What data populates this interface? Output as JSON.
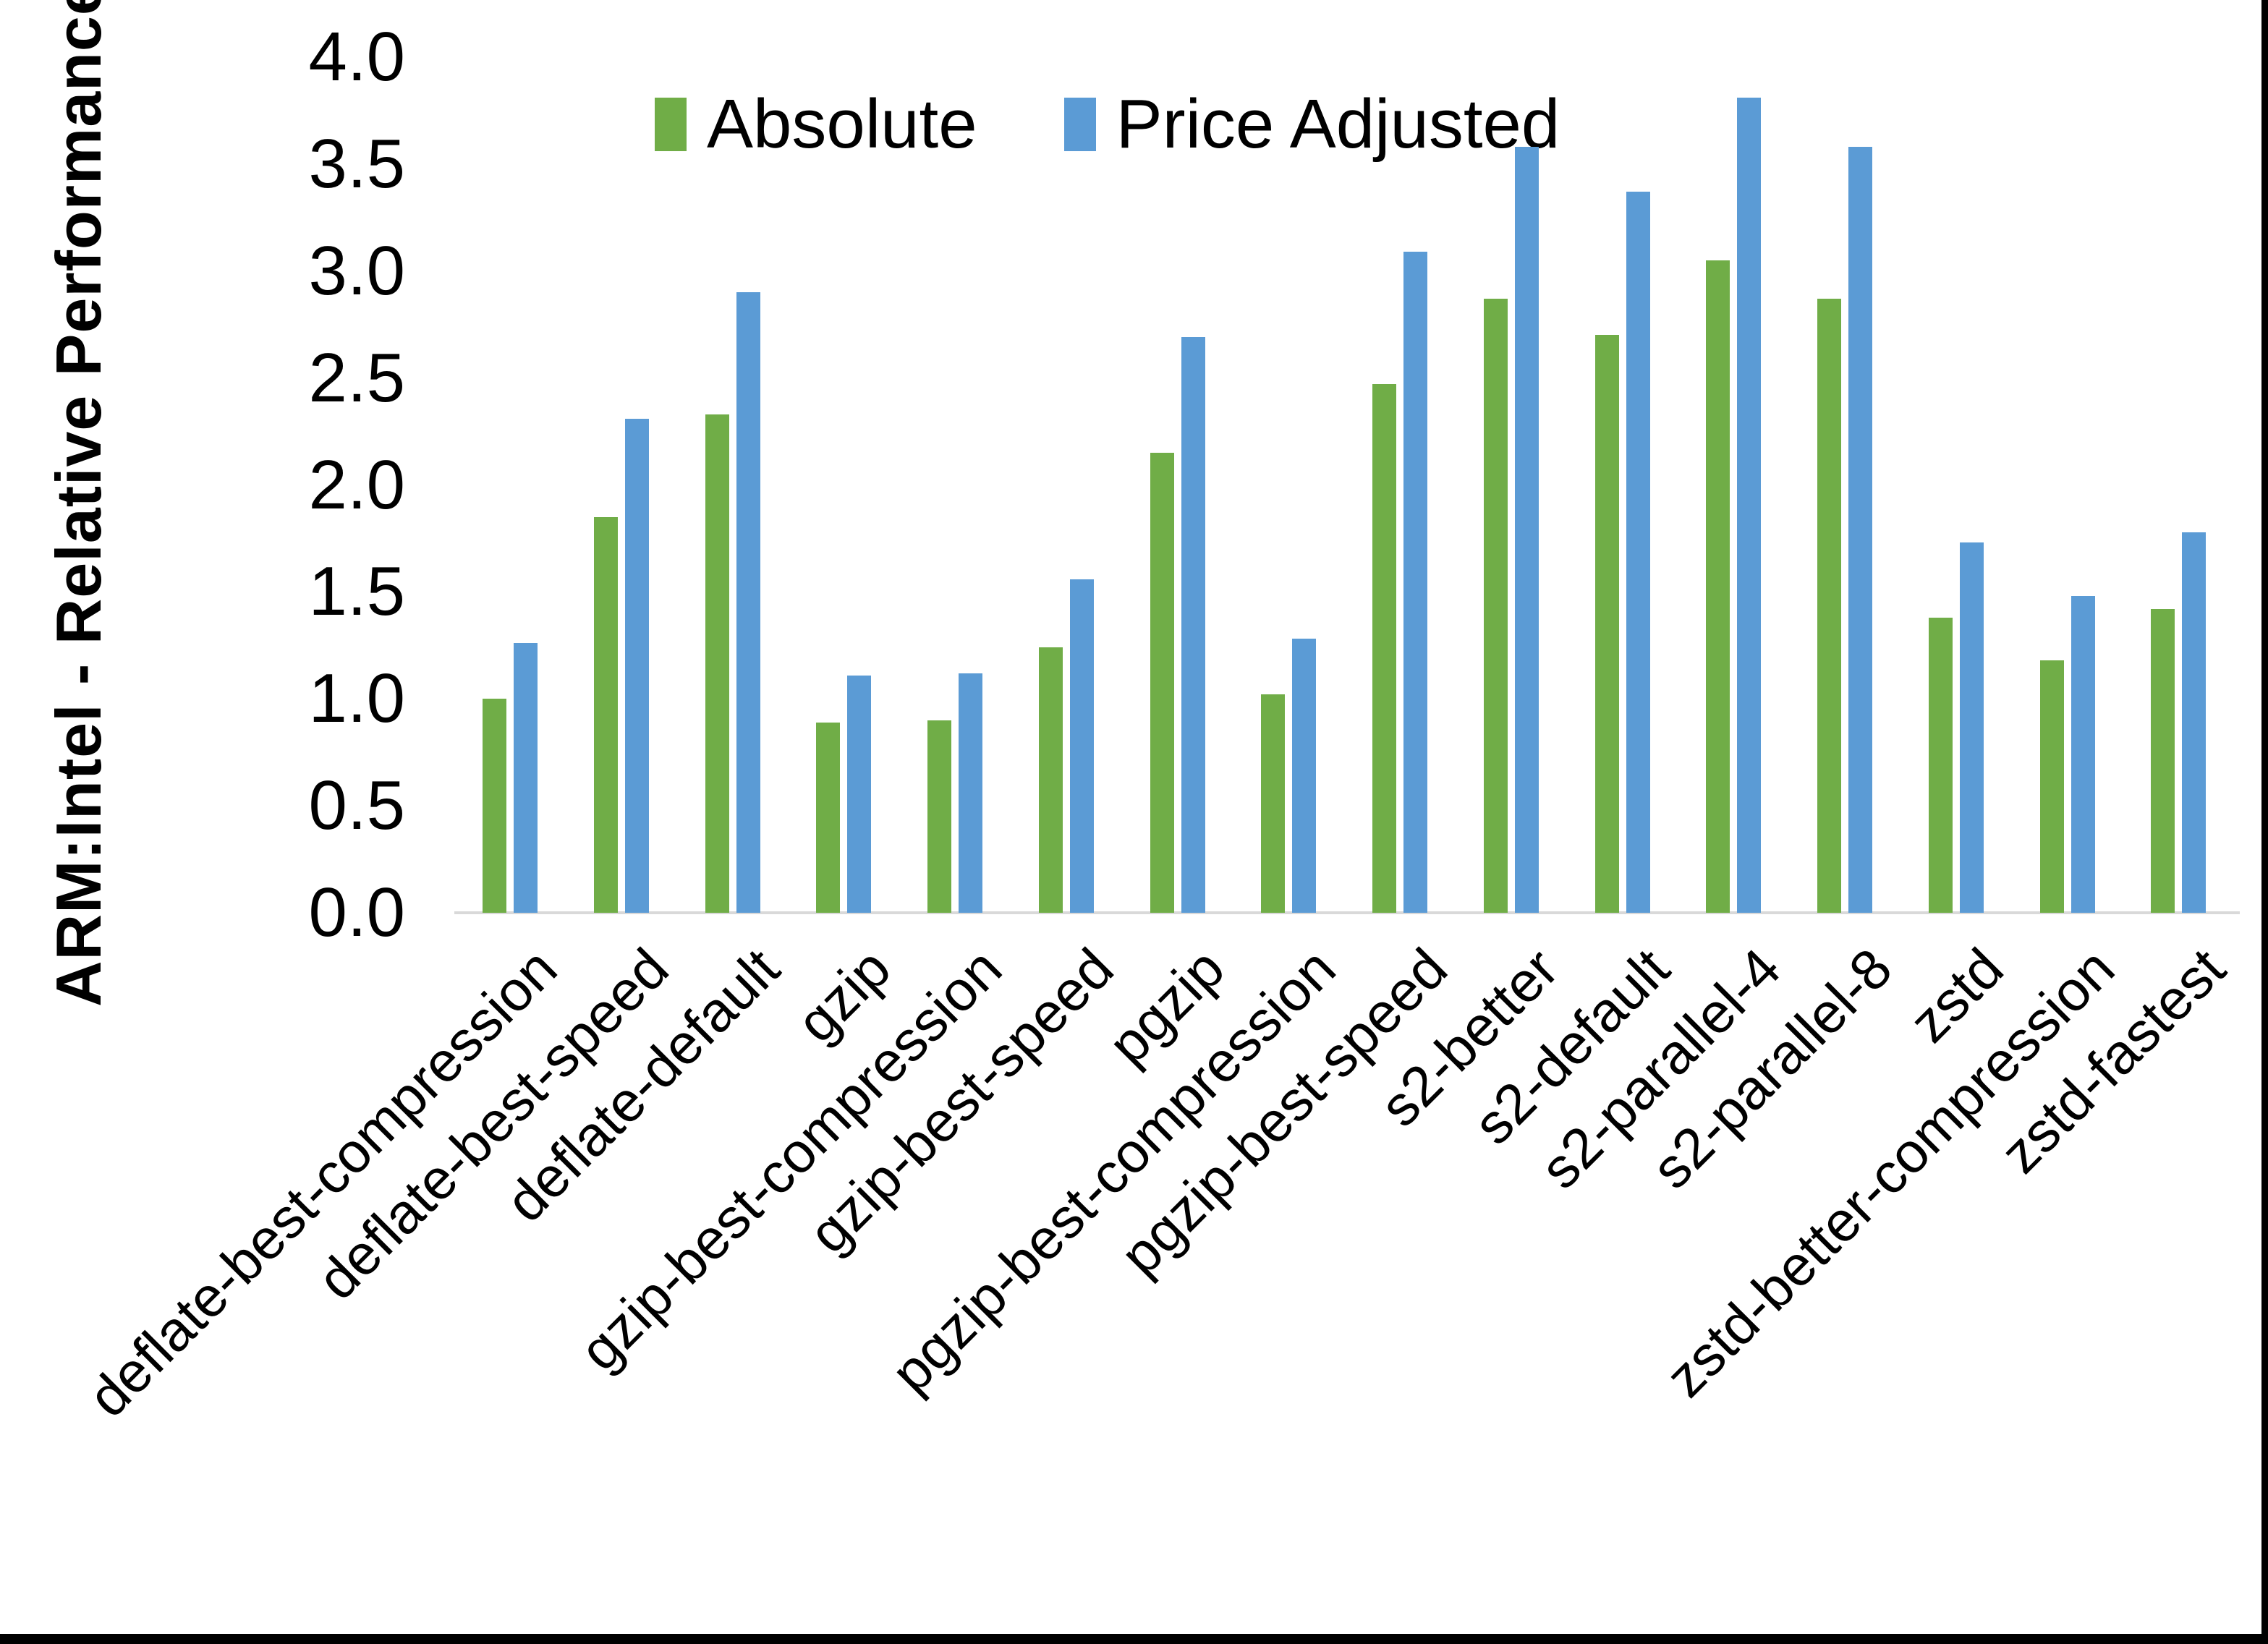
{
  "figure": {
    "background": "#ffffff",
    "frame_color": "#000000"
  },
  "chart_data": {
    "type": "bar",
    "title": "",
    "xlabel": "",
    "ylabel": "ARM:Intel - Relative Performance",
    "ylim": [
      0.0,
      4.0
    ],
    "ytick_labels": [
      "0.0",
      "0.5",
      "1.0",
      "1.5",
      "2.0",
      "2.5",
      "3.0",
      "3.5",
      "4.0"
    ],
    "grid": false,
    "legend_position": "top-center",
    "axis_line_color": "#D9D9D9",
    "text_color": "#000000",
    "categories": [
      "deflate-best-compression",
      "deflate-best-speed",
      "deflate-default",
      "gzip",
      "gzip-best-compression",
      "gzip-best-speed",
      "pgzip",
      "pgzip-best-compression",
      "pgzip-best-speed",
      "s2-better",
      "s2-default",
      "s2-parallel-4",
      "s2-parallel-8",
      "zstd",
      "zstd-better-compression",
      "zstd-fastest"
    ],
    "series": [
      {
        "name": "Absolute",
        "color": "#70AD47",
        "values": [
          1.0,
          1.85,
          2.33,
          0.89,
          0.9,
          1.24,
          2.15,
          1.02,
          2.47,
          2.87,
          2.7,
          3.05,
          2.87,
          1.38,
          1.18,
          1.42
        ]
      },
      {
        "name": "Price Adjusted",
        "color": "#5B9BD5",
        "values": [
          1.26,
          2.31,
          2.9,
          1.11,
          1.12,
          1.56,
          2.69,
          1.28,
          3.09,
          3.58,
          3.37,
          3.81,
          3.58,
          1.73,
          1.48,
          1.78
        ]
      }
    ]
  }
}
